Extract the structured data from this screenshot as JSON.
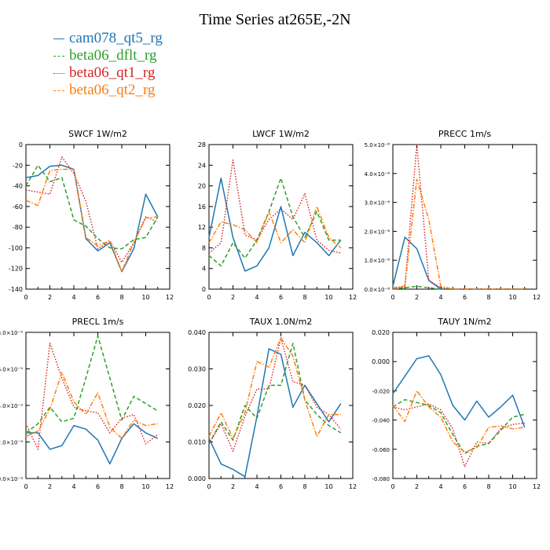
{
  "figure": {
    "title": "Time Series at265E,-2N"
  },
  "legend": [
    {
      "label": "cam078_qt5_rg",
      "color": "#1f77b4"
    },
    {
      "label": "beta06_dflt_rg",
      "color": "#2ca02c"
    },
    {
      "label": "beta06_qt1_rg",
      "color": "#d62728"
    },
    {
      "label": "beta06_qt2_rg",
      "color": "#ff7f0e"
    }
  ],
  "styles": {
    "cam078_qt5_rg": "solid",
    "beta06_dflt_rg": "dashed",
    "beta06_qt1_rg": "dotted",
    "beta06_qt2_rg": "dashdot"
  },
  "chart_data": [
    {
      "type": "line",
      "title": "SWCF   1W/m2",
      "x": [
        0,
        1,
        2,
        3,
        4,
        5,
        6,
        7,
        8,
        9,
        10,
        11
      ],
      "xlim": [
        0,
        12
      ],
      "xticks": [
        0,
        2,
        4,
        6,
        8,
        10,
        12
      ],
      "ylim": [
        -140,
        0
      ],
      "yticks": [
        0,
        -20,
        -40,
        -60,
        -80,
        -100,
        -120,
        -140
      ],
      "ytick_labels": [
        "0",
        "-20",
        "-40",
        "-60",
        "-80",
        "-100",
        "-120",
        "-140"
      ],
      "series": [
        {
          "name": "cam078_qt5_rg",
          "values": [
            -32,
            -30,
            -21,
            -20,
            -24,
            -91,
            -103,
            -95,
            -123,
            -101,
            -48,
            -70
          ]
        },
        {
          "name": "beta06_dflt_rg",
          "values": [
            -40,
            -20,
            -36,
            -32,
            -73,
            -79,
            -91,
            -100,
            -101,
            -92,
            -90,
            -70
          ]
        },
        {
          "name": "beta06_qt1_rg",
          "values": [
            -44,
            -46,
            -48,
            -12,
            -28,
            -55,
            -101,
            -93,
            -114,
            -95,
            -70,
            -75
          ]
        },
        {
          "name": "beta06_qt2_rg",
          "values": [
            -54,
            -59,
            -25,
            -24,
            -24,
            -90,
            -98,
            -93,
            -123,
            -95,
            -71,
            -70
          ]
        }
      ]
    },
    {
      "type": "line",
      "title": "LWCF   1W/m2",
      "x": [
        0,
        1,
        2,
        3,
        4,
        5,
        6,
        7,
        8,
        9,
        10,
        11
      ],
      "xlim": [
        0,
        12
      ],
      "xticks": [
        0,
        2,
        4,
        6,
        8,
        10,
        12
      ],
      "ylim": [
        0,
        28
      ],
      "yticks": [
        0,
        4,
        8,
        12,
        16,
        20,
        24,
        28
      ],
      "ytick_labels": [
        "0",
        "4",
        "8",
        "12",
        "16",
        "20",
        "24",
        "28"
      ],
      "series": [
        {
          "name": "cam078_qt5_rg",
          "values": [
            10,
            21.5,
            10,
            3.5,
            4.5,
            8,
            16,
            6.5,
            11,
            9,
            6.5,
            9.5
          ]
        },
        {
          "name": "beta06_dflt_rg",
          "values": [
            6.5,
            4.5,
            9,
            6,
            9.5,
            15,
            21.5,
            14,
            10,
            15,
            9.5,
            9.5
          ]
        },
        {
          "name": "beta06_qt1_rg",
          "values": [
            7,
            9,
            25,
            10.5,
            9.5,
            13.5,
            15.5,
            13.5,
            18.5,
            9.5,
            7.5,
            7
          ]
        },
        {
          "name": "beta06_qt2_rg",
          "values": [
            9,
            13,
            12.5,
            11.5,
            9,
            15,
            9,
            11.5,
            9,
            16,
            10,
            8
          ]
        }
      ]
    },
    {
      "type": "line",
      "title": "PRECC   1m/s",
      "x": [
        0,
        1,
        2,
        3,
        4,
        5,
        6,
        7,
        8,
        9,
        10,
        11
      ],
      "xlim": [
        0,
        12
      ],
      "xticks": [
        0,
        2,
        4,
        6,
        8,
        10,
        12
      ],
      "ylim": [
        0,
        5e-08
      ],
      "yticks": [
        0,
        1e-08,
        2e-08,
        3e-08,
        4e-08,
        5e-08
      ],
      "ytick_labels": [
        "0.0×10⁻⁸",
        "1.0×10⁻⁸",
        "2.0×10⁻⁸",
        "3.0×10⁻⁸",
        "4.0×10⁻⁸",
        "5.0×10⁻⁸"
      ],
      "series": [
        {
          "name": "cam078_qt5_rg",
          "values": [
            1e-09,
            1.8e-08,
            1.4e-08,
            3e-09,
            0,
            0,
            0,
            0,
            0,
            0,
            0,
            0
          ]
        },
        {
          "name": "beta06_dflt_rg",
          "values": [
            0,
            5e-10,
            1e-09,
            5e-10,
            0,
            0,
            0,
            0,
            0,
            0,
            0,
            0
          ]
        },
        {
          "name": "beta06_qt1_rg",
          "values": [
            0,
            1e-09,
            5e-08,
            3e-09,
            5e-10,
            0,
            0,
            0,
            0,
            0,
            0,
            0
          ]
        },
        {
          "name": "beta06_qt2_rg",
          "values": [
            5e-10,
            1e-09,
            3.8e-08,
            2.4e-08,
            1e-09,
            0,
            0,
            0,
            0,
            0,
            0,
            0
          ]
        }
      ]
    },
    {
      "type": "line",
      "title": "PRECL   1m/s",
      "x": [
        0,
        1,
        2,
        3,
        4,
        5,
        6,
        7,
        8,
        9,
        10,
        11
      ],
      "xlim": [
        0,
        12
      ],
      "xticks": [
        0,
        2,
        4,
        6,
        8,
        10,
        12
      ],
      "ylim": [
        0,
        8e-09
      ],
      "yticks": [
        0,
        2e-09,
        4e-09,
        6e-09,
        8e-09
      ],
      "ytick_labels": [
        "0.0×10⁻⁹",
        "2.0×10⁻⁹",
        "4.0×10⁻⁹",
        "6.0×10⁻⁹",
        "8.0×10⁻⁹"
      ],
      "series": [
        {
          "name": "cam078_qt5_rg",
          "values": [
            2.5e-09,
            2.5e-09,
            1.6e-09,
            1.8e-09,
            2.9e-09,
            2.7e-09,
            2.1e-09,
            8e-10,
            2.2e-09,
            3e-09,
            2.5e-09,
            2.2e-09
          ]
        },
        {
          "name": "beta06_dflt_rg",
          "values": [
            2.5e-09,
            3e-09,
            3.9e-09,
            3.1e-09,
            3.3e-09,
            5.5e-09,
            7.8e-09,
            5.5e-09,
            3.2e-09,
            4.5e-09,
            4.1e-09,
            3.7e-09
          ]
        },
        {
          "name": "beta06_qt1_rg",
          "values": [
            3e-09,
            1.6e-09,
            7.4e-09,
            5.5e-09,
            3.9e-09,
            3.7e-09,
            3.6e-09,
            2.5e-09,
            3.3e-09,
            3.5e-09,
            1.9e-09,
            2.4e-09
          ]
        },
        {
          "name": "beta06_qt2_rg",
          "values": [
            2.3e-09,
            2.6e-09,
            3.8e-09,
            5.8e-09,
            4.2e-09,
            3.5e-09,
            4.7e-09,
            2.8e-09,
            2.2e-09,
            3.2e-09,
            2.9e-09,
            3e-09
          ]
        }
      ]
    },
    {
      "type": "line",
      "title": "TAUX   1.0N/m2",
      "x": [
        0,
        1,
        2,
        3,
        4,
        5,
        6,
        7,
        8,
        9,
        10,
        11
      ],
      "xlim": [
        0,
        12
      ],
      "xticks": [
        0,
        2,
        4,
        6,
        8,
        10,
        12
      ],
      "ylim": [
        0,
        0.04
      ],
      "yticks": [
        0,
        0.01,
        0.02,
        0.03,
        0.04
      ],
      "ytick_labels": [
        "0.000",
        "0.010",
        "0.020",
        "0.030",
        "0.040"
      ],
      "series": [
        {
          "name": "cam078_qt5_rg",
          "values": [
            0.011,
            0.004,
            0.0025,
            0.0005,
            0.017,
            0.0355,
            0.034,
            0.0195,
            0.0255,
            0.0205,
            0.0155,
            0.0205
          ]
        },
        {
          "name": "beta06_dflt_rg",
          "values": [
            0.0095,
            0.0155,
            0.0105,
            0.02,
            0.0165,
            0.0255,
            0.0255,
            0.037,
            0.0215,
            0.0175,
            0.0145,
            0.0125
          ]
        },
        {
          "name": "beta06_qt1_rg",
          "values": [
            0.0095,
            0.015,
            0.0075,
            0.017,
            0.0245,
            0.0245,
            0.0385,
            0.0265,
            0.0255,
            0.0195,
            0.0175,
            0.0135
          ]
        },
        {
          "name": "beta06_qt2_rg",
          "values": [
            0.0115,
            0.018,
            0.011,
            0.018,
            0.032,
            0.0305,
            0.0385,
            0.0335,
            0.0215,
            0.0115,
            0.0175,
            0.0175
          ]
        }
      ]
    },
    {
      "type": "line",
      "title": "TAUY   1N/m2",
      "x": [
        0,
        1,
        2,
        3,
        4,
        5,
        6,
        7,
        8,
        9,
        10,
        11
      ],
      "xlim": [
        0,
        12
      ],
      "xticks": [
        0,
        2,
        4,
        6,
        8,
        10,
        12
      ],
      "ylim": [
        -0.08,
        0.02
      ],
      "yticks": [
        0.02,
        0,
        -0.02,
        -0.04,
        -0.06,
        -0.08
      ],
      "ytick_labels": [
        "0.020",
        "0.000",
        "-0.020",
        "-0.040",
        "-0.060",
        "-0.080"
      ],
      "series": [
        {
          "name": "cam078_qt5_rg",
          "values": [
            -0.022,
            -0.01,
            0.002,
            0.004,
            -0.009,
            -0.03,
            -0.04,
            -0.027,
            -0.038,
            -0.031,
            -0.023,
            -0.045
          ]
        },
        {
          "name": "beta06_dflt_rg",
          "values": [
            -0.031,
            -0.026,
            -0.028,
            -0.03,
            -0.035,
            -0.05,
            -0.063,
            -0.058,
            -0.056,
            -0.047,
            -0.038,
            -0.036
          ]
        },
        {
          "name": "beta06_qt1_rg",
          "values": [
            -0.031,
            -0.033,
            -0.031,
            -0.029,
            -0.033,
            -0.046,
            -0.072,
            -0.055,
            -0.056,
            -0.046,
            -0.043,
            -0.042
          ]
        },
        {
          "name": "beta06_qt2_rg",
          "values": [
            -0.03,
            -0.041,
            -0.02,
            -0.031,
            -0.038,
            -0.055,
            -0.062,
            -0.059,
            -0.045,
            -0.044,
            -0.046,
            -0.045
          ]
        }
      ]
    }
  ]
}
